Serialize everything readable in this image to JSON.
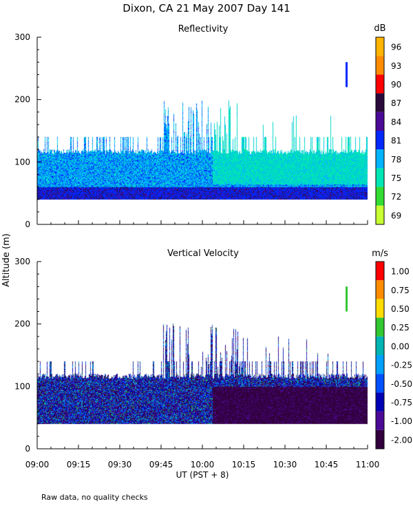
{
  "page": {
    "title": "Dixon, CA 21 May 2007  Day 141",
    "ylabel": "Altitude (m)",
    "xlabel": "UT  (PST + 8)",
    "footnote": "Raw data, no quality checks"
  },
  "chart_data": [
    {
      "type": "heatmap",
      "title": "Reflectivity",
      "ylabel": "Altitude (m)",
      "ylim": [
        0,
        300
      ],
      "yticks": [
        "0",
        "100",
        "200",
        "300"
      ],
      "xlim": [
        "09:00",
        "11:00"
      ],
      "xticks": [
        "09:00",
        "09:15",
        "09:30",
        "09:45",
        "10:00",
        "10:15",
        "10:30",
        "10:45",
        "11:00"
      ],
      "colorbar": {
        "unit": "dB",
        "labels": [
          "96",
          "93",
          "90",
          "87",
          "84",
          "81",
          "78",
          "75",
          "72",
          "69"
        ],
        "colors": [
          "#ffb400",
          "#ff8c00",
          "#ff0000",
          "#2a0a3c",
          "#4b0a96",
          "#0028ff",
          "#00b4ff",
          "#00e6b4",
          "#32dc32",
          "#c8ff32"
        ]
      },
      "data_summary": {
        "base_altitude_m": 40,
        "typical_top_altitude_m": 120,
        "max_echo_altitude_m": 200,
        "isolated_echo": {
          "time": "10:52",
          "altitude_range_m": [
            220,
            260
          ],
          "value_db": 81
        }
      }
    },
    {
      "type": "heatmap",
      "title": "Vertical Velocity",
      "ylabel": "Altitude (m)",
      "ylim": [
        0,
        300
      ],
      "yticks": [
        "0",
        "100",
        "200",
        "300"
      ],
      "xlim": [
        "09:00",
        "11:00"
      ],
      "xticks": [
        "09:00",
        "09:15",
        "09:30",
        "09:45",
        "10:00",
        "10:15",
        "10:30",
        "10:45",
        "11:00"
      ],
      "colorbar": {
        "unit": "m/s",
        "labels": [
          "1.00",
          "0.75",
          "0.50",
          "0.25",
          "0.00",
          "-0.25",
          "-0.50",
          "-0.75",
          "-1.00",
          "-2.00"
        ],
        "colors": [
          "#ff0000",
          "#ff8c00",
          "#ffdc00",
          "#32c832",
          "#00b4b4",
          "#00a0ff",
          "#0050ff",
          "#0000b4",
          "#4b0a96",
          "#32003c"
        ]
      },
      "data_summary": {
        "base_altitude_m": 40,
        "typical_top_altitude_m": 120,
        "max_echo_altitude_m": 200,
        "dominant_late_value_ms": -2.0
      }
    }
  ]
}
